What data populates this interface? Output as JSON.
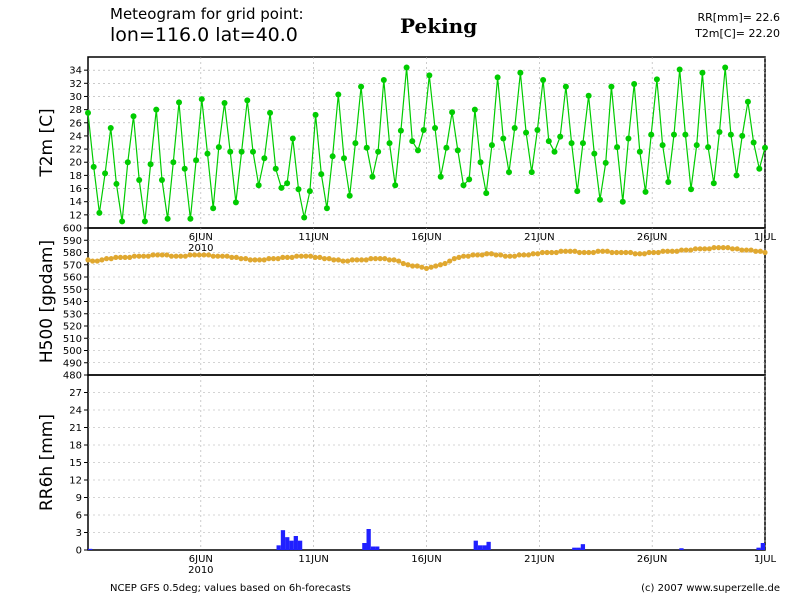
{
  "header": {
    "line1": "Meteogram for grid point:",
    "line2": "lon=116.0  lat=40.0",
    "place": "Peking",
    "rr": "RR[mm]= 22.6",
    "t2m": "T2m[C]= 22.20"
  },
  "footer": {
    "left": "NCEP GFS 0.5deg; values based on 6h-forecasts",
    "right": "(c) 2007 www.superzelle.de"
  },
  "chart_data": [
    {
      "type": "line",
      "ylabel": "T2m [C]",
      "ylim": [
        10,
        36
      ],
      "yticks": [
        12,
        14,
        16,
        18,
        20,
        22,
        24,
        26,
        28,
        30,
        32,
        34
      ],
      "x_start": "2010-06-01 00:00",
      "step_hours": 6,
      "xticks": [
        "6JUN",
        "11JUN",
        "16JUN",
        "21JUN",
        "26JUN",
        "1JUL"
      ],
      "year_label": "2010",
      "color": "#00cc00",
      "grid": true,
      "series": [
        {
          "values": [
            27.5,
            19.3,
            12.3,
            18.3,
            25.2,
            16.7,
            11.0,
            20.0,
            27.0,
            17.3,
            11.0,
            19.7,
            28.0,
            17.3,
            11.4,
            20.0,
            29.1,
            19.0,
            11.4,
            20.3,
            29.6,
            21.3,
            13.0,
            22.3,
            29.0,
            21.6,
            13.9,
            21.6,
            29.4,
            21.6,
            16.5,
            20.6,
            27.5,
            19.0,
            16.1,
            16.8,
            23.6,
            15.9,
            11.6,
            15.6,
            27.2,
            18.2,
            13.0,
            20.9,
            30.3,
            20.6,
            14.9,
            22.9,
            31.5,
            22.2,
            17.8,
            21.6,
            32.5,
            22.9,
            16.5,
            24.8,
            34.4,
            23.2,
            21.8,
            24.9,
            33.2,
            25.2,
            17.8,
            22.2,
            27.6,
            21.8,
            16.5,
            17.4,
            28.0,
            20.0,
            15.3,
            22.6,
            32.9,
            23.6,
            18.5,
            25.2,
            33.6,
            24.5,
            18.5,
            24.9,
            32.5,
            23.2,
            21.6,
            23.9,
            31.5,
            22.9,
            15.6,
            22.9,
            30.1,
            21.3,
            14.3,
            19.9,
            31.5,
            22.3,
            14.0,
            23.6,
            31.9,
            21.6,
            15.5,
            24.2,
            32.6,
            22.6,
            17.0,
            24.2,
            34.1,
            24.2,
            15.9,
            22.6,
            33.6,
            22.3,
            16.8,
            24.6,
            34.4,
            24.2,
            18.0,
            24.0,
            29.2,
            23.0,
            19.0,
            22.2
          ]
        }
      ]
    },
    {
      "type": "line",
      "ylabel": "H500 [gpdam]",
      "ylim": [
        480,
        600
      ],
      "yticks": [
        480,
        490,
        500,
        510,
        520,
        530,
        540,
        550,
        560,
        570,
        580,
        590,
        600
      ],
      "color": "#e0a830",
      "grid": true,
      "series": [
        {
          "values": [
            574,
            573,
            573,
            574,
            575,
            575,
            576,
            576,
            576,
            576,
            577,
            577,
            577,
            577,
            578,
            578,
            578,
            578,
            577,
            577,
            577,
            577,
            578,
            578,
            578,
            578,
            578,
            577,
            577,
            577,
            577,
            576,
            576,
            575,
            575,
            574,
            574,
            574,
            574,
            575,
            575,
            575,
            576,
            576,
            576,
            577,
            577,
            577,
            577,
            576,
            576,
            575,
            575,
            574,
            574,
            573,
            573,
            574,
            574,
            574,
            574,
            575,
            575,
            575,
            575,
            574,
            574,
            573,
            571,
            570,
            569,
            569,
            568,
            567,
            568,
            569,
            570,
            571,
            573,
            575,
            576,
            577,
            577,
            578,
            578,
            578,
            579,
            579,
            578,
            578,
            577,
            577,
            577,
            578,
            578,
            578,
            579,
            579,
            580,
            580,
            580,
            580,
            581,
            581,
            581,
            581,
            580,
            580,
            580,
            580,
            581,
            581,
            581,
            580,
            580,
            580,
            580,
            580,
            579,
            579,
            579,
            580,
            580,
            580,
            581,
            581,
            581,
            581,
            582,
            582,
            582,
            583,
            583,
            583,
            583,
            584,
            584,
            584,
            584,
            583,
            583,
            582,
            582,
            582,
            581,
            581,
            580
          ]
        }
      ]
    },
    {
      "type": "bar",
      "ylabel": "RR6h [mm]",
      "ylim": [
        0,
        30
      ],
      "yticks": [
        0,
        3,
        6,
        9,
        12,
        15,
        18,
        21,
        24,
        27
      ],
      "xticks": [
        "6JUN",
        "11JUN",
        "16JUN",
        "21JUN",
        "26JUN",
        "1JUL"
      ],
      "year_label": "2010",
      "color": "#2020ff",
      "grid": true,
      "series": [
        {
          "values": [
            0.2,
            0,
            0,
            0,
            0,
            0,
            0,
            0,
            0,
            0,
            0,
            0,
            0,
            0,
            0,
            0,
            0,
            0,
            0,
            0,
            0,
            0,
            0,
            0,
            0,
            0,
            0,
            0,
            0,
            0,
            0,
            0,
            0,
            0,
            0,
            0,
            0,
            0,
            0,
            0,
            0,
            0,
            0,
            0,
            0.8,
            3.4,
            2.2,
            1.6,
            2.4,
            1.6,
            0,
            0,
            0,
            0,
            0,
            0,
            0,
            0,
            0,
            0,
            0,
            0,
            0,
            0,
            1.2,
            3.6,
            0.6,
            0.6,
            0,
            0,
            0,
            0,
            0,
            0,
            0,
            0,
            0,
            0,
            0,
            0,
            0,
            0,
            0,
            0,
            0,
            0,
            0,
            0,
            0,
            0,
            1.6,
            0.8,
            0.8,
            1.4,
            0,
            0,
            0,
            0,
            0,
            0,
            0,
            0,
            0,
            0,
            0,
            0,
            0,
            0,
            0,
            0,
            0,
            0,
            0,
            0.4,
            0.4,
            1.0,
            0,
            0,
            0,
            0,
            0,
            0,
            0,
            0,
            0,
            0,
            0,
            0,
            0,
            0,
            0,
            0,
            0,
            0,
            0,
            0,
            0,
            0,
            0.3,
            0,
            0,
            0,
            0,
            0,
            0,
            0,
            0,
            0,
            0,
            0,
            0,
            0,
            0,
            0,
            0,
            0,
            0.4,
            1.2
          ]
        }
      ]
    }
  ]
}
